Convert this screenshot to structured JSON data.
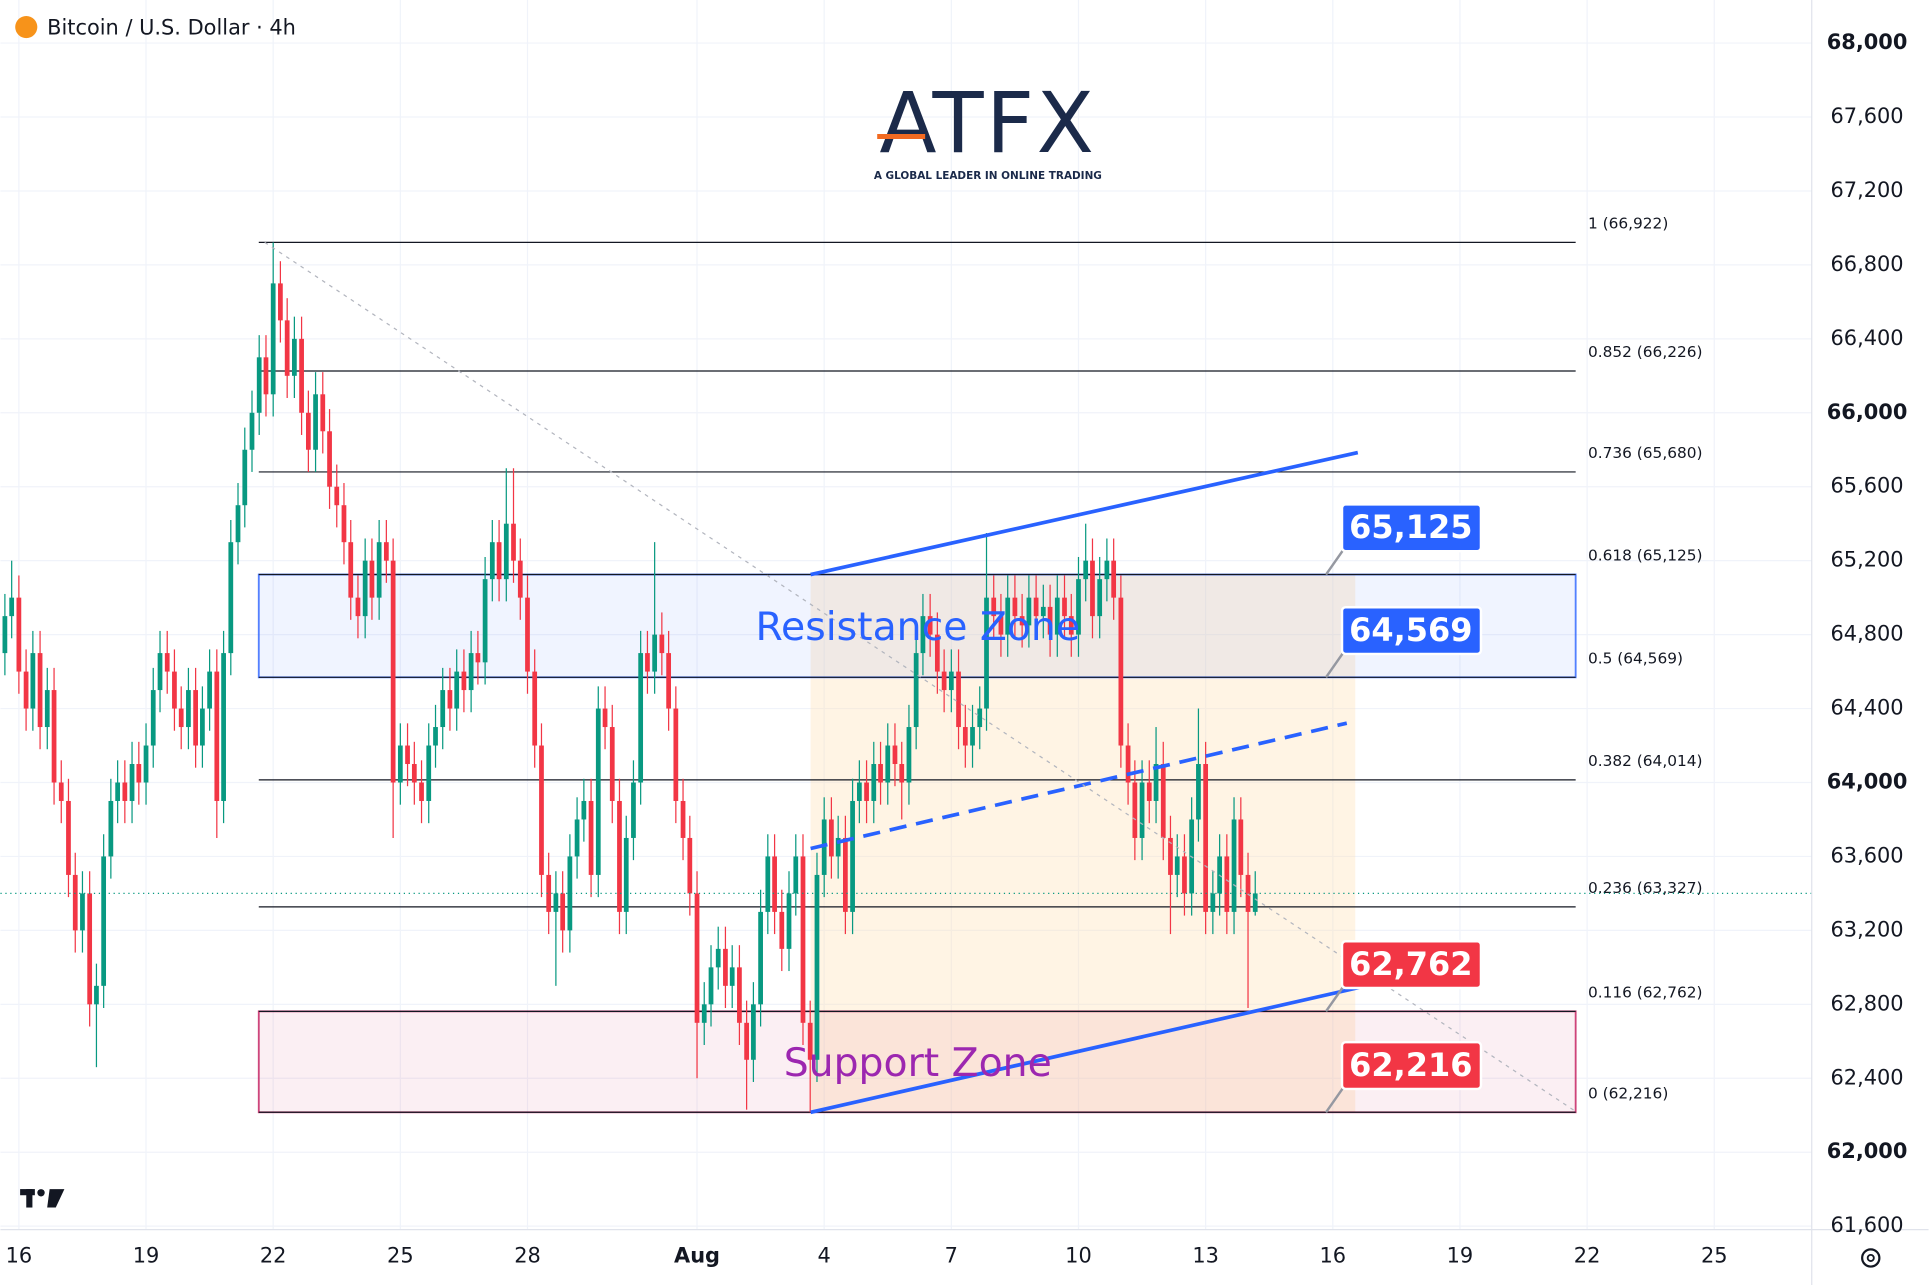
{
  "header": {
    "title": "Bitcoin / U.S. Dollar · 4h"
  },
  "logo": {
    "name": "ATFX",
    "tagline": "A GLOBAL LEADER IN ONLINE TRADING"
  },
  "chart_data": {
    "type": "candlestick",
    "x": [
      15.67,
      15.83,
      16,
      16.17,
      16.33,
      16.5,
      16.67,
      16.83,
      17,
      17.17,
      17.33,
      17.5,
      17.67,
      17.83,
      18,
      18.17,
      18.33,
      18.5,
      18.67,
      18.83,
      19,
      19.17,
      19.33,
      19.5,
      19.67,
      19.83,
      20,
      20.17,
      20.33,
      20.5,
      20.67,
      20.83,
      21,
      21.17,
      21.33,
      21.5,
      21.67,
      21.83,
      22,
      22.17,
      22.33,
      22.5,
      22.67,
      22.83,
      23,
      23.17,
      23.33,
      23.5,
      23.67,
      23.83,
      24,
      24.17,
      24.33,
      24.5,
      24.67,
      24.83,
      25,
      25.17,
      25.33,
      25.5,
      25.67,
      25.83,
      26,
      26.17,
      26.33,
      26.5,
      26.67,
      26.83,
      27,
      27.17,
      27.33,
      27.5,
      27.67,
      27.83,
      28,
      28.17,
      28.33,
      28.5,
      28.67,
      28.83,
      29,
      29.17,
      29.33,
      29.5,
      29.67,
      29.83,
      30,
      30.17,
      30.33,
      30.5,
      30.67,
      30.83,
      31,
      31.17,
      31.33,
      31.5,
      31.67,
      31.83,
      32,
      32.17,
      32.33,
      32.5,
      32.67,
      32.83,
      33,
      33.17,
      33.33,
      33.5,
      33.67,
      33.83,
      34,
      34.17,
      34.33,
      34.5,
      34.67,
      34.83,
      35,
      35.17,
      35.33,
      35.5,
      35.67,
      35.83,
      36,
      36.17,
      36.33,
      36.5,
      36.67,
      36.83,
      37,
      37.17,
      37.33,
      37.5,
      37.67,
      37.83,
      38,
      38.17,
      38.33,
      38.5,
      38.67,
      38.83,
      39,
      39.17,
      39.33,
      39.5,
      39.67,
      39.83,
      40,
      40.17,
      40.33,
      40.5,
      40.67,
      40.83,
      41,
      41.17,
      41.33,
      41.5,
      41.67,
      41.83,
      42,
      42.17,
      42.33,
      42.5,
      42.67,
      42.83,
      43,
      43.17,
      43.33,
      43.5,
      43.67,
      43.83,
      44,
      44.17,
      44.33,
      44.5,
      44.67,
      44.83,
      45,
      45.17
    ],
    "open": [
      64700,
      64900,
      65000,
      64600,
      64400,
      64700,
      64300,
      64500,
      64000,
      63900,
      63500,
      63200,
      63400,
      62800,
      62900,
      63600,
      63900,
      64000,
      63900,
      64100,
      64000,
      64200,
      64500,
      64700,
      64600,
      64400,
      64300,
      64500,
      64200,
      64400,
      64600,
      63900,
      64700,
      65300,
      65500,
      65800,
      66000,
      66300,
      66100,
      66700,
      66500,
      66200,
      66400,
      66000,
      65800,
      66100,
      65900,
      65600,
      65500,
      65300,
      65000,
      64900,
      65200,
      65000,
      65300,
      65200,
      64000,
      64200,
      64100,
      64000,
      63900,
      64200,
      64300,
      64500,
      64400,
      64600,
      64500,
      64700,
      64650,
      65100,
      65300,
      65100,
      65400,
      65200,
      65000,
      64600,
      64200,
      63500,
      63300,
      63400,
      63200,
      63600,
      63800,
      63900,
      63500,
      64400,
      64300,
      63900,
      63300,
      63700,
      64000,
      64700,
      64600,
      64800,
      64700,
      64400,
      63900,
      63700,
      63400,
      62700,
      62800,
      63000,
      63100,
      62900,
      63000,
      62700,
      62500,
      62800,
      63300,
      63600,
      63300,
      63100,
      63400,
      63600,
      62700,
      62500,
      63500,
      63800,
      63600,
      63700,
      63300,
      63900,
      64000,
      63900,
      64100,
      64000,
      64200,
      64100,
      64000,
      64300,
      64700,
      64900,
      64800,
      64600,
      64500,
      64600,
      64300,
      64200,
      64300,
      64400,
      65000,
      64900,
      64800,
      65000,
      64900,
      64850,
      65000,
      64900,
      64950,
      64800,
      65000,
      64900,
      64800,
      65100,
      65200,
      64900,
      65100,
      65200,
      65000,
      64200,
      64000,
      63700,
      64000,
      63900,
      64100,
      63700,
      63500,
      63600,
      63400,
      63800,
      64100,
      63300,
      63400,
      63600,
      63300,
      63800,
      63500,
      63300
    ],
    "high": [
      65020,
      65200,
      65120,
      64720,
      64820,
      64820,
      64620,
      64620,
      64120,
      64020,
      63620,
      63520,
      63520,
      63020,
      63720,
      64020,
      64120,
      64120,
      64220,
      64220,
      64320,
      64620,
      64820,
      64820,
      64720,
      64520,
      64620,
      64620,
      64520,
      64720,
      64720,
      64820,
      65420,
      65620,
      65920,
      66120,
      66420,
      66420,
      66922,
      66820,
      66620,
      66520,
      66520,
      66120,
      66220,
      66220,
      66020,
      65720,
      65620,
      65420,
      65120,
      65320,
      65320,
      65420,
      65420,
      65320,
      64320,
      64320,
      64220,
      64120,
      64320,
      64420,
      64620,
      64620,
      64720,
      64720,
      64820,
      64820,
      65220,
      65420,
      65420,
      65700,
      65700,
      65320,
      65120,
      64720,
      64320,
      63620,
      63520,
      63520,
      63720,
      63920,
      64020,
      64020,
      64520,
      64520,
      64420,
      64020,
      63820,
      64120,
      64820,
      64820,
      65300,
      64920,
      64820,
      64520,
      64020,
      63820,
      63520,
      62920,
      63120,
      63220,
      63220,
      63120,
      63120,
      62820,
      62920,
      63420,
      63720,
      63720,
      63420,
      63520,
      63720,
      63720,
      62820,
      63620,
      63920,
      63920,
      63820,
      63820,
      64020,
      64120,
      64120,
      64220,
      64220,
      64320,
      64320,
      64220,
      64420,
      64820,
      65020,
      65020,
      64920,
      64720,
      64720,
      64720,
      64420,
      64420,
      64520,
      65350,
      65120,
      65020,
      65120,
      65120,
      65020,
      65120,
      65120,
      65070,
      65070,
      65120,
      65120,
      65020,
      65220,
      65400,
      65320,
      65220,
      65320,
      65320,
      65120,
      64320,
      64120,
      64120,
      64120,
      64300,
      64220,
      63820,
      63720,
      63720,
      63920,
      64400,
      64220,
      63520,
      63720,
      63720,
      63920,
      63920,
      63620,
      63520
    ],
    "low": [
      64580,
      64780,
      64480,
      64280,
      64280,
      64180,
      64180,
      63880,
      63780,
      63380,
      63080,
      63080,
      62680,
      62460,
      62780,
      63480,
      63780,
      63780,
      63780,
      63880,
      63880,
      64080,
      64380,
      64480,
      64280,
      64180,
      64180,
      64080,
      64080,
      64280,
      63700,
      63780,
      64580,
      65180,
      65380,
      65680,
      65880,
      65980,
      65980,
      66380,
      66080,
      66080,
      65880,
      65680,
      65680,
      65780,
      65480,
      65380,
      65180,
      64880,
      64780,
      64780,
      64880,
      64880,
      65080,
      63700,
      63880,
      63980,
      63880,
      63780,
      63780,
      64080,
      64180,
      64280,
      64280,
      64380,
      64380,
      64530,
      64530,
      64980,
      64980,
      64980,
      65080,
      64880,
      64480,
      64080,
      63380,
      63180,
      62900,
      63080,
      63080,
      63480,
      63680,
      63380,
      63380,
      64180,
      63780,
      63180,
      63180,
      63580,
      63880,
      64480,
      64480,
      64580,
      64280,
      63780,
      63580,
      63280,
      62400,
      62580,
      62680,
      62880,
      62780,
      62780,
      62580,
      62230,
      62380,
      62680,
      63180,
      63180,
      62980,
      62980,
      63280,
      62580,
      62216,
      62380,
      63380,
      63480,
      63480,
      63180,
      63180,
      63780,
      63780,
      63780,
      63880,
      63880,
      63980,
      63800,
      63880,
      64180,
      64580,
      64680,
      64480,
      64380,
      64380,
      64180,
      64080,
      64080,
      64180,
      64280,
      64780,
      64680,
      64680,
      64780,
      64730,
      64730,
      64780,
      64780,
      64680,
      64680,
      64780,
      64680,
      64680,
      64980,
      64780,
      64780,
      64980,
      64880,
      64080,
      63880,
      63580,
      63580,
      63780,
      63780,
      63580,
      63180,
      63380,
      63280,
      63280,
      63680,
      63180,
      63180,
      63280,
      63180,
      63180,
      63380,
      62780,
      63280
    ],
    "close": [
      64900,
      65000,
      64600,
      64400,
      64700,
      64300,
      64500,
      64000,
      63900,
      63500,
      63200,
      63400,
      62800,
      62900,
      63600,
      63900,
      64000,
      63900,
      64100,
      64000,
      64200,
      64500,
      64700,
      64600,
      64400,
      64300,
      64500,
      64200,
      64400,
      64600,
      63900,
      64700,
      65300,
      65500,
      65800,
      66000,
      66300,
      66100,
      66700,
      66500,
      66200,
      66400,
      66000,
      65800,
      66100,
      65900,
      65600,
      65500,
      65300,
      65000,
      64900,
      65200,
      65000,
      65300,
      65200,
      64000,
      64200,
      64100,
      64000,
      63900,
      64200,
      64300,
      64500,
      64400,
      64600,
      64500,
      64700,
      64650,
      65100,
      65300,
      65100,
      65400,
      65200,
      65000,
      64600,
      64200,
      63500,
      63300,
      63400,
      63200,
      63600,
      63800,
      63900,
      63500,
      64400,
      64300,
      63900,
      63300,
      63700,
      64000,
      64700,
      64600,
      64800,
      64700,
      64400,
      63900,
      63700,
      63400,
      62700,
      62800,
      63000,
      63100,
      62900,
      63000,
      62700,
      62500,
      62800,
      63300,
      63600,
      63300,
      63100,
      63400,
      63600,
      62700,
      62500,
      63500,
      63800,
      63600,
      63700,
      63300,
      63900,
      64000,
      63900,
      64100,
      64000,
      64200,
      64100,
      64000,
      64300,
      64700,
      64900,
      64800,
      64600,
      64500,
      64600,
      64300,
      64200,
      64300,
      64400,
      65000,
      64900,
      64800,
      65000,
      64900,
      64850,
      65000,
      64900,
      64950,
      64800,
      65000,
      64900,
      64800,
      65100,
      65200,
      64900,
      65100,
      65200,
      65000,
      64200,
      64000,
      63700,
      64000,
      63900,
      64100,
      63700,
      63500,
      63600,
      63400,
      63800,
      64100,
      63300,
      63400,
      63600,
      63300,
      63800,
      63500,
      63300,
      63400
    ],
    "up_color": "#089981",
    "down_color": "#f23645",
    "last_price_color": "#089981",
    "xlim": [
      15.565,
      58.3
    ],
    "ylim": [
      61581,
      68233
    ],
    "grid": true,
    "xticks": [
      16,
      19,
      22,
      25,
      28,
      {
        "value": 32,
        "label": "Aug"
      },
      {
        "value": 35,
        "label": "4"
      },
      {
        "value": 38,
        "label": "7"
      },
      {
        "value": 41,
        "label": "10"
      },
      {
        "value": 44,
        "label": "13"
      },
      {
        "value": 47,
        "label": "16"
      },
      {
        "value": 50,
        "label": "19"
      },
      {
        "value": 53,
        "label": "22"
      },
      {
        "value": 56,
        "label": "25"
      }
    ],
    "yticks": [
      {
        "value": 61600,
        "label": "61,600"
      },
      {
        "value": 62000,
        "label": "62,000"
      },
      {
        "value": 62400,
        "label": "62,400"
      },
      {
        "value": 62800,
        "label": "62,800"
      },
      {
        "value": 63200,
        "label": "63,200"
      },
      {
        "value": 63600,
        "label": "63,600"
      },
      {
        "value": 64000,
        "label": "64,000"
      },
      {
        "value": 64400,
        "label": "64,400"
      },
      {
        "value": 64800,
        "label": "64,800"
      },
      {
        "value": 65200,
        "label": "65,200"
      },
      {
        "value": 65600,
        "label": "65,600"
      },
      {
        "value": 66000,
        "label": "66,000"
      },
      {
        "value": 66400,
        "label": "66,400"
      },
      {
        "value": 66800,
        "label": "66,800"
      },
      {
        "value": 67200,
        "label": "67,200"
      },
      {
        "value": 67600,
        "label": "67,600"
      },
      {
        "value": 68000,
        "label": "68,000"
      }
    ],
    "fib_range": [
      21.66,
      52.73
    ],
    "fib_levels": [
      {
        "value": 66922,
        "label": "1 (66,922)"
      },
      {
        "value": 66226,
        "label": "0.852 (66,226)"
      },
      {
        "value": 65680,
        "label": "0.736 (65,680)"
      },
      {
        "value": 65125,
        "label": "0.618 (65,125)"
      },
      {
        "value": 64569,
        "label": "0.5 (64,569)"
      },
      {
        "value": 64014,
        "label": "0.382 (64,014)"
      },
      {
        "value": 63327,
        "label": "0.236 (63,327)"
      },
      {
        "value": 62762,
        "label": "0.116 (62,762)"
      },
      {
        "value": 62216,
        "label": "0 (62,216)"
      }
    ],
    "zones": [
      {
        "name": "Resistance Zone",
        "from": 64569,
        "to": 65125,
        "color": "#2962ff",
        "text_color": "#2962ff"
      },
      {
        "name": "Support Zone",
        "from": 62216,
        "to": 62762,
        "color": "#c2185b",
        "text_color": "#9c27b0"
      }
    ],
    "highlight_box": {
      "x": [
        34.68,
        47.53
      ],
      "y": [
        62216,
        65125
      ],
      "color": "#ffe0b2"
    },
    "trend_lines": [
      {
        "x": [
          34.68,
          47.62
        ],
        "y": [
          62216,
          62891
        ],
        "color": "#2962ff",
        "style": "solid"
      },
      {
        "x": [
          34.68,
          47.59
        ],
        "y": [
          65125,
          65785
        ],
        "color": "#2962ff",
        "style": "solid"
      },
      {
        "x": [
          34.68,
          47.33
        ],
        "y": [
          63643,
          64321
        ],
        "color": "#2962ff",
        "style": "dashed"
      },
      {
        "x": [
          21.8,
          52.76
        ],
        "y": [
          66922,
          62216
        ],
        "color": "#b2b5be",
        "style": "dotted"
      }
    ],
    "price_labels": [
      {
        "value": 65125,
        "label": "65,125",
        "color": "#2962ff"
      },
      {
        "value": 64569,
        "label": "64,569",
        "color": "#2962ff"
      },
      {
        "value": 62762,
        "label": "62,762",
        "color": "#f23645"
      },
      {
        "value": 62216,
        "label": "62,216",
        "color": "#f23645"
      }
    ]
  }
}
